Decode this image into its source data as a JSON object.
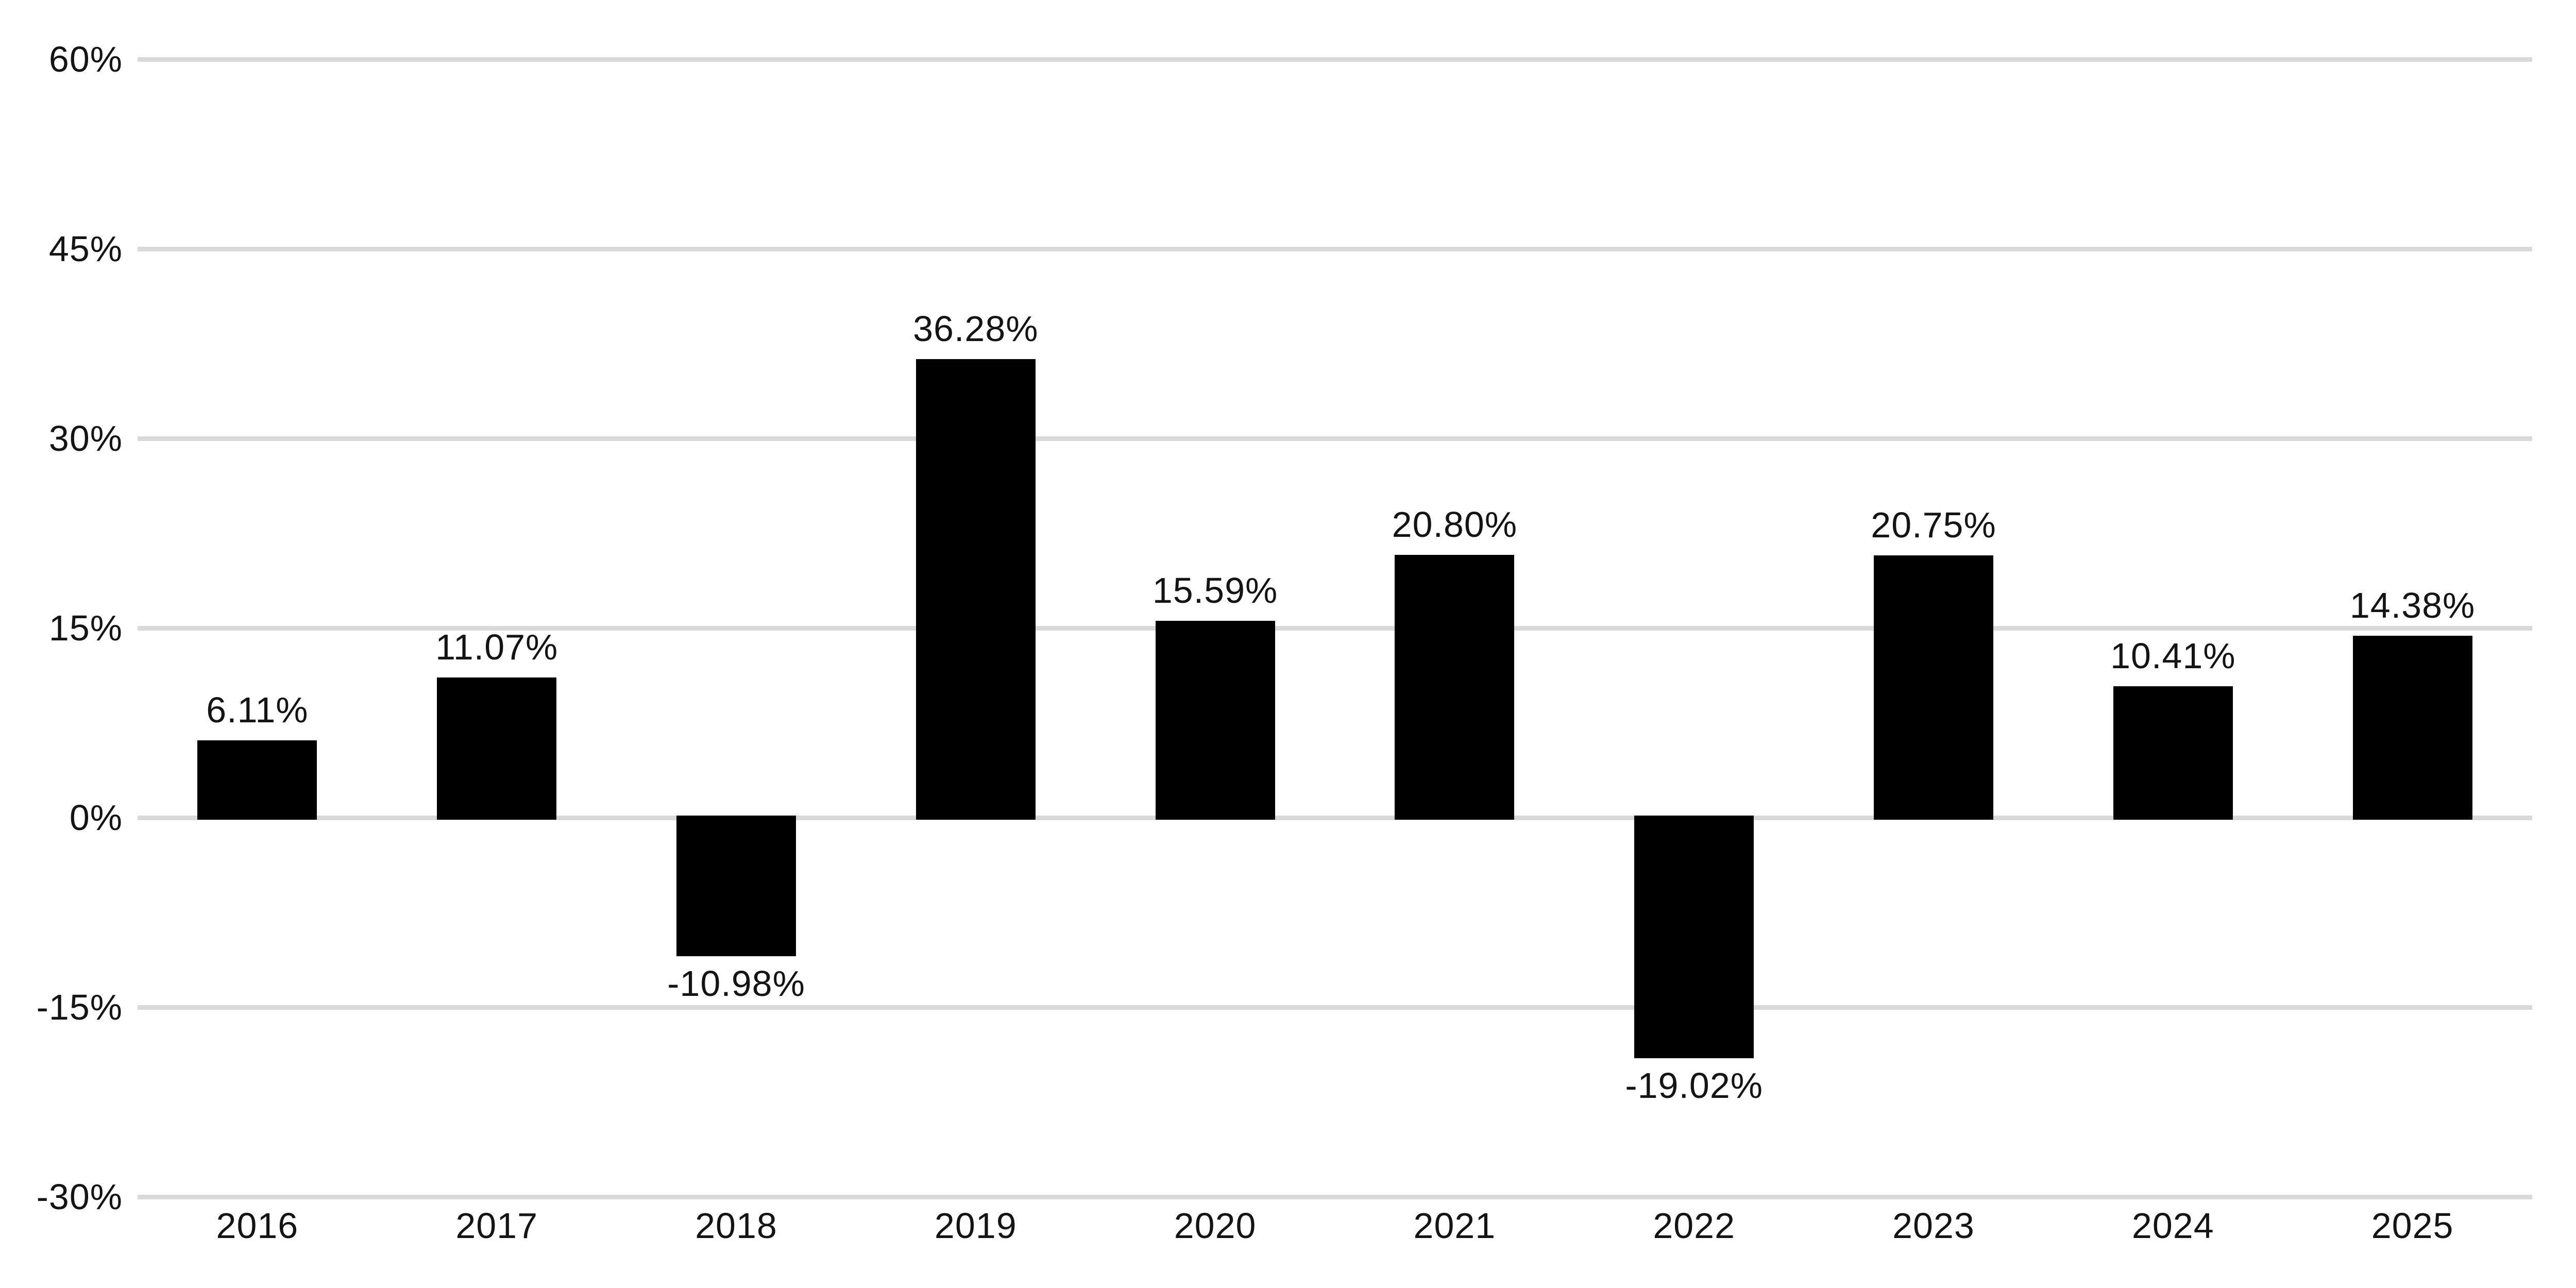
{
  "chart_data": {
    "type": "bar",
    "title": "",
    "xlabel": "",
    "ylabel": "",
    "categories": [
      "2016",
      "2017",
      "2018",
      "2019",
      "2020",
      "2021",
      "2022",
      "2023",
      "2024",
      "2025"
    ],
    "values": [
      6.11,
      11.07,
      -10.98,
      36.28,
      15.59,
      20.8,
      -19.02,
      20.75,
      10.41,
      14.38
    ],
    "value_labels": [
      "6.11%",
      "11.07%",
      "-10.98%",
      "36.28%",
      "15.59%",
      "20.80%",
      "-19.02%",
      "20.75%",
      "10.41%",
      "14.38%"
    ],
    "y_ticks": [
      {
        "value": 60,
        "label": "60%"
      },
      {
        "value": 45,
        "label": "45%"
      },
      {
        "value": 30,
        "label": "30%"
      },
      {
        "value": 15,
        "label": "15%"
      },
      {
        "value": 0,
        "label": "0%"
      },
      {
        "value": -15,
        "label": "-15%"
      },
      {
        "value": -30,
        "label": "-30%"
      }
    ],
    "ylim": [
      -30,
      60
    ],
    "grid": true,
    "legend": "none",
    "bar_color": "#000000",
    "gridline_color": "#d9d9d9",
    "background_color": "#ffffff",
    "text_color": "#141414"
  }
}
